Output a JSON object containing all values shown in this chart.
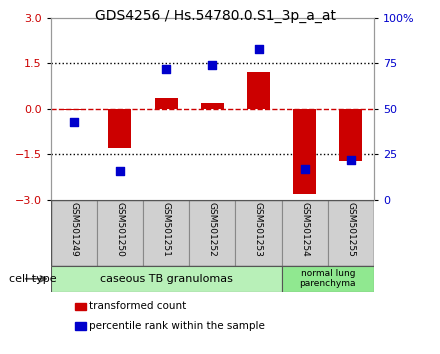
{
  "title": "GDS4256 / Hs.54780.0.S1_3p_a_at",
  "samples": [
    "GSM501249",
    "GSM501250",
    "GSM501251",
    "GSM501252",
    "GSM501253",
    "GSM501254",
    "GSM501255"
  ],
  "transformed_count": [
    -0.05,
    -1.3,
    0.35,
    0.2,
    1.2,
    -2.8,
    -1.7
  ],
  "percentile_rank": [
    43,
    16,
    72,
    74,
    83,
    17,
    22
  ],
  "ylim_left": [
    -3,
    3
  ],
  "ylim_right": [
    0,
    100
  ],
  "yticks_left": [
    -3,
    -1.5,
    0,
    1.5,
    3
  ],
  "yticks_right": [
    0,
    25,
    50,
    75,
    100
  ],
  "yticklabels_right": [
    "0",
    "25",
    "50",
    "75",
    "100%"
  ],
  "bar_color": "#cc0000",
  "square_color": "#0000cc",
  "hline_color": "#cc0000",
  "dotted_line_color": "#000000",
  "groups": [
    {
      "label": "caseous TB granulomas",
      "indices": [
        0,
        4
      ],
      "color": "#b8f0b8"
    },
    {
      "label": "normal lung\nparenchyma",
      "indices": [
        5,
        6
      ],
      "color": "#90e890"
    }
  ],
  "cell_type_label": "cell type",
  "legend_items": [
    {
      "label": "transformed count",
      "color": "#cc0000"
    },
    {
      "label": "percentile rank within the sample",
      "color": "#0000cc"
    }
  ],
  "bg_color": "#ffffff",
  "plot_bg_color": "#ffffff",
  "sample_box_color": "#d0d0d0",
  "title_fontsize": 10,
  "tick_fontsize": 8,
  "bar_width": 0.5,
  "square_size": 35
}
